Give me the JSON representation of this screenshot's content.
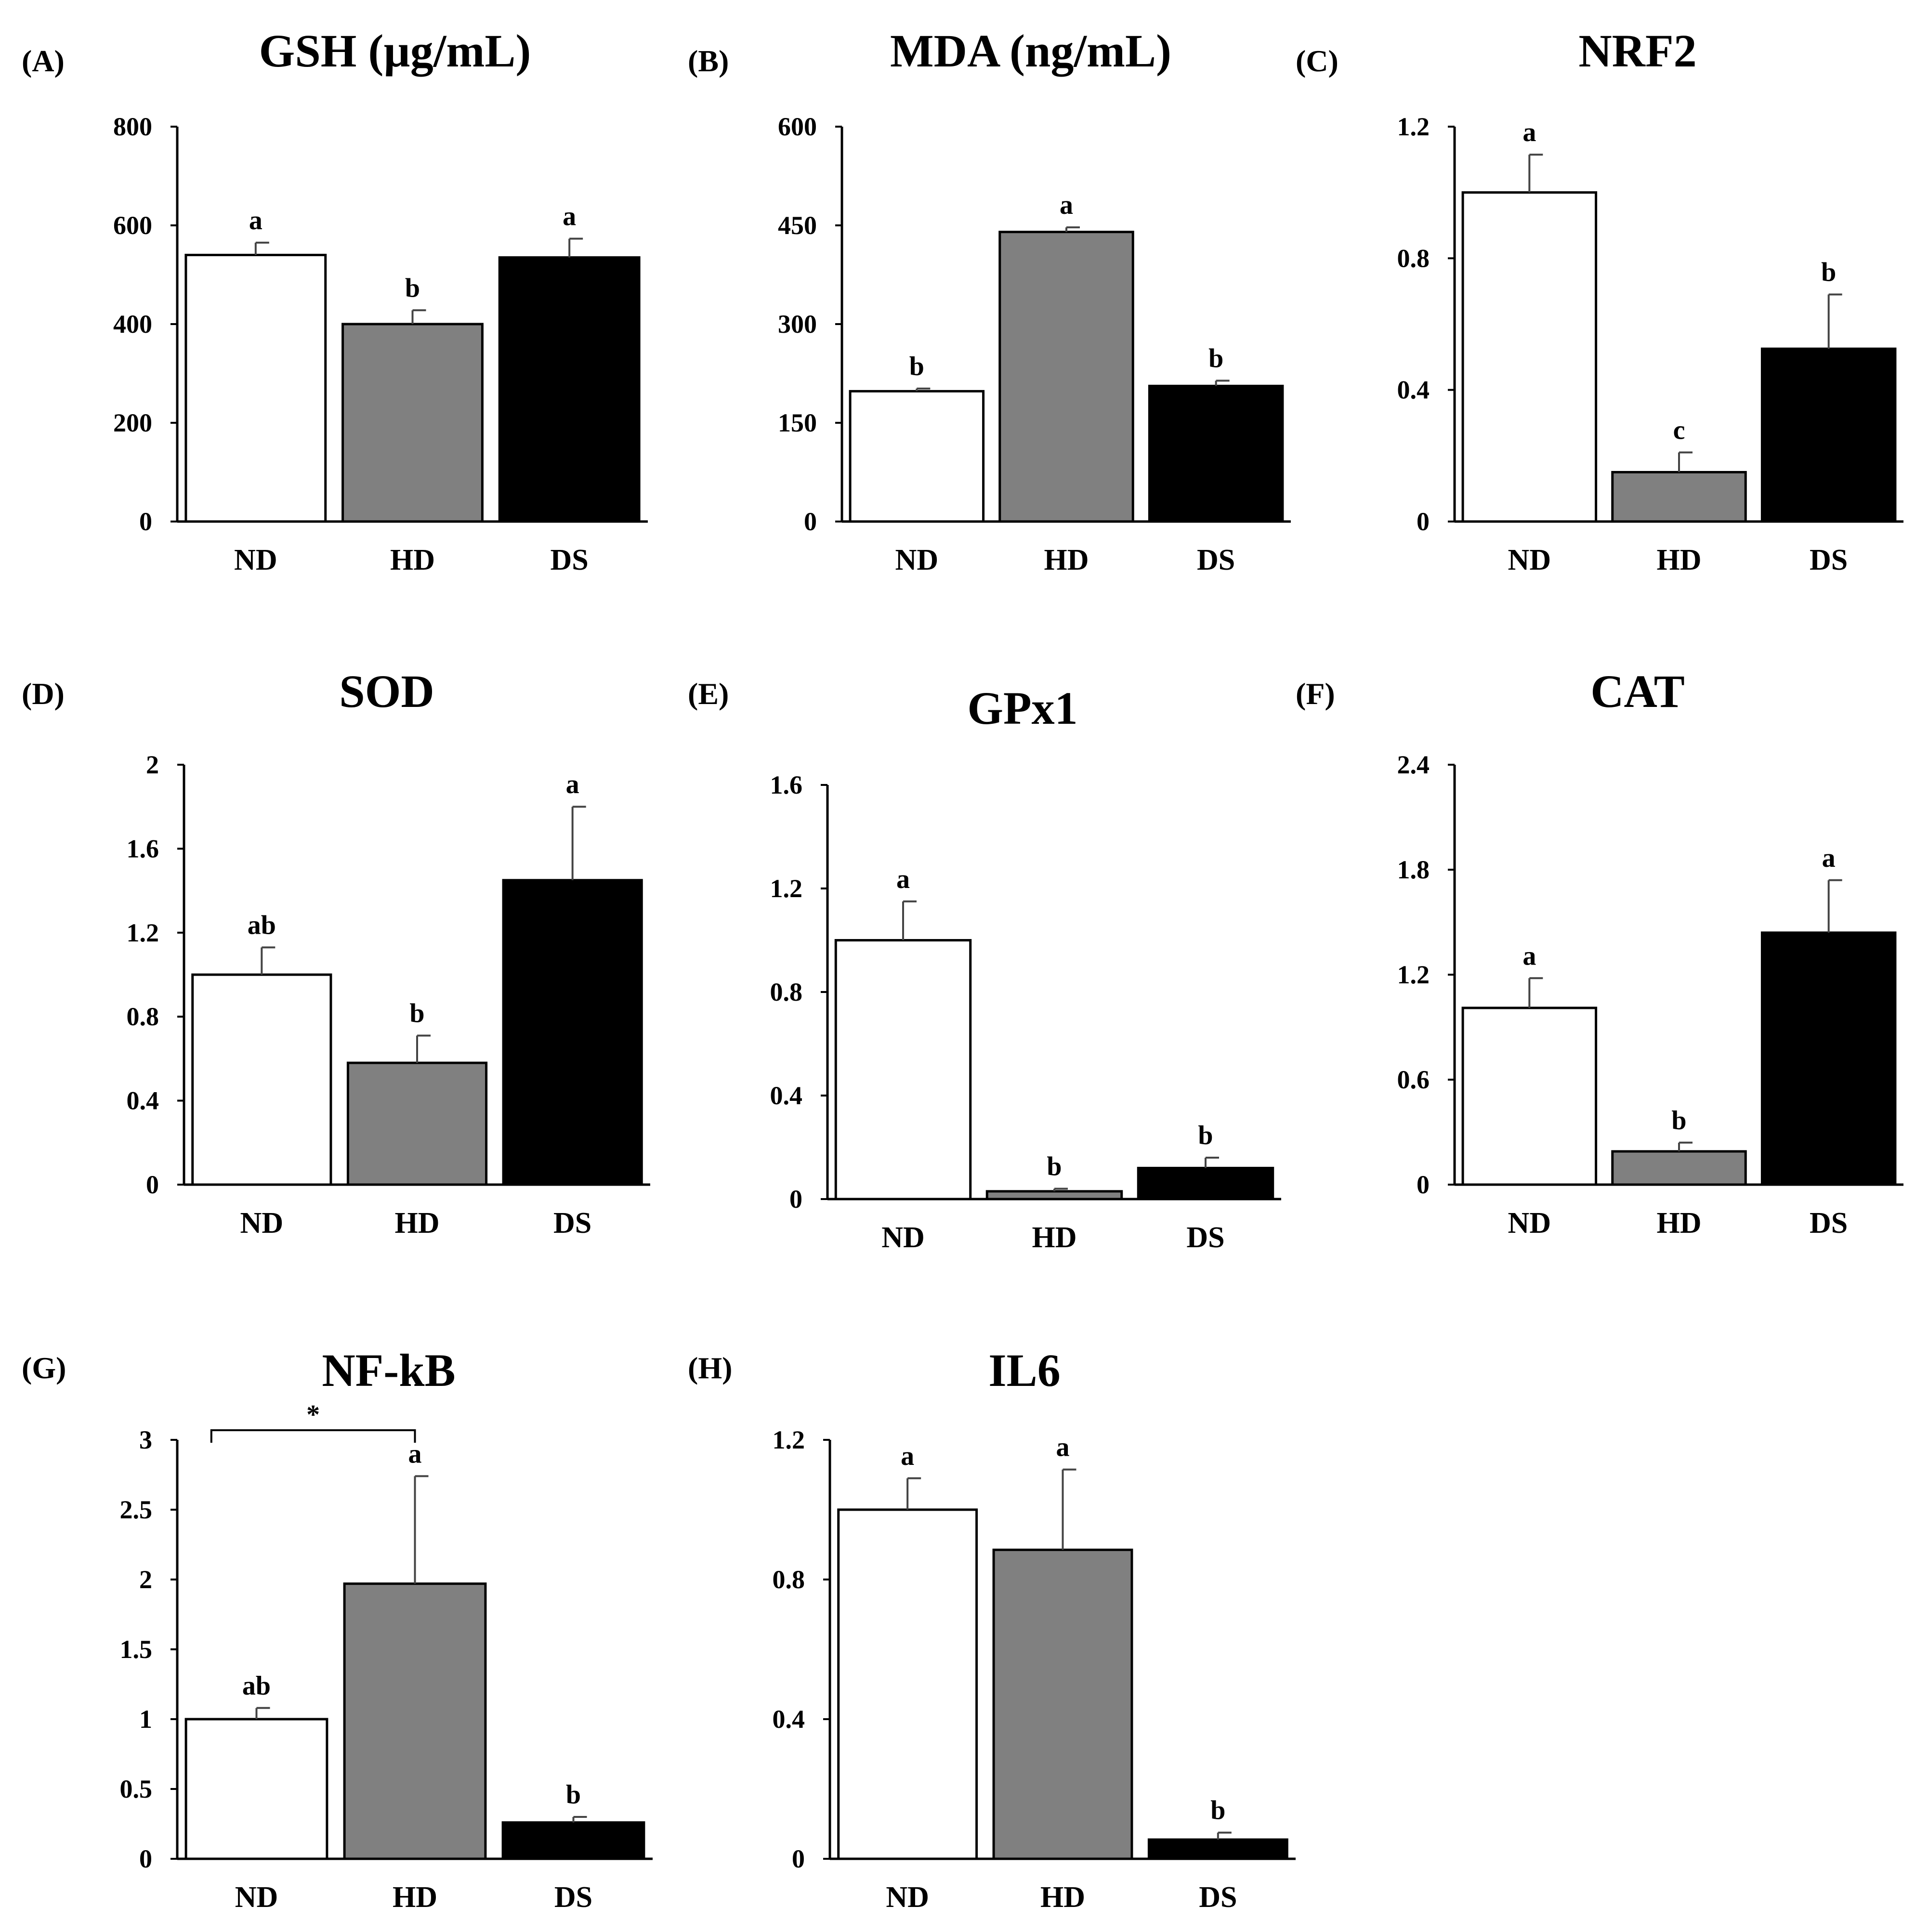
{
  "figure": {
    "groups": [
      "ND",
      "HD",
      "DS"
    ],
    "group_colors": {
      "ND": "#ffffff",
      "HD": "#808080",
      "DS": "#000000"
    }
  },
  "chart_data": [
    {
      "id": "A",
      "panel_label": "(A)",
      "type": "bar",
      "title": "GSH (µg/mL)",
      "categories": [
        "ND",
        "HD",
        "DS"
      ],
      "values": [
        540,
        400,
        535
      ],
      "errors": [
        25,
        28,
        38
      ],
      "significance": [
        "a",
        "b",
        "a"
      ],
      "ylim": [
        0,
        800
      ],
      "yticks": [
        0,
        200,
        400,
        600,
        800
      ],
      "ytick_labels": [
        "0",
        "200",
        "400",
        "600",
        "800"
      ]
    },
    {
      "id": "B",
      "panel_label": "(B)",
      "type": "bar",
      "title": "MDA (ng/mL)",
      "categories": [
        "ND",
        "HD",
        "DS"
      ],
      "values": [
        198,
        440,
        206
      ],
      "errors": [
        4,
        7,
        8
      ],
      "significance": [
        "b",
        "a",
        "b"
      ],
      "ylim": [
        0,
        600
      ],
      "yticks": [
        0,
        150,
        300,
        450,
        600
      ],
      "ytick_labels": [
        "0",
        "150",
        "300",
        "450",
        "600"
      ]
    },
    {
      "id": "C",
      "panel_label": "(C)",
      "type": "bar",
      "title": "NRF2",
      "categories": [
        "ND",
        "HD",
        "DS"
      ],
      "values": [
        1.0,
        0.15,
        0.525
      ],
      "errors": [
        0.115,
        0.06,
        0.165
      ],
      "significance": [
        "a",
        "c",
        "b"
      ],
      "ylim": [
        0,
        1.2
      ],
      "yticks": [
        0,
        0.4,
        0.8,
        1.2
      ],
      "ytick_labels": [
        "0",
        "0.4",
        "0.8",
        "1.2"
      ]
    },
    {
      "id": "D",
      "panel_label": "(D)",
      "type": "bar",
      "title": "SOD",
      "categories": [
        "ND",
        "HD",
        "DS"
      ],
      "values": [
        1.0,
        0.58,
        1.45
      ],
      "errors": [
        0.13,
        0.13,
        0.35
      ],
      "significance": [
        "ab",
        "b",
        "a"
      ],
      "ylim": [
        0,
        2
      ],
      "yticks": [
        0,
        0.4,
        0.8,
        1.2,
        1.6,
        2
      ],
      "ytick_labels": [
        "0",
        "0.4",
        "0.8",
        "1.2",
        "1.6",
        "2"
      ]
    },
    {
      "id": "E",
      "panel_label": "(E)",
      "type": "bar",
      "title": "GPx1",
      "categories": [
        "ND",
        "HD",
        "DS"
      ],
      "values": [
        1.0,
        0.03,
        0.12
      ],
      "errors": [
        0.15,
        0.01,
        0.04
      ],
      "significance": [
        "a",
        "b",
        "b"
      ],
      "ylim": [
        0,
        1.6
      ],
      "yticks": [
        0,
        0.4,
        0.8,
        1.2,
        1.6
      ],
      "ytick_labels": [
        "0",
        "0.4",
        "0.8",
        "1.2",
        "1.6"
      ]
    },
    {
      "id": "F",
      "panel_label": "(F)",
      "type": "bar",
      "title": "CAT",
      "categories": [
        "ND",
        "HD",
        "DS"
      ],
      "values": [
        1.01,
        0.19,
        1.44
      ],
      "errors": [
        0.17,
        0.05,
        0.3
      ],
      "significance": [
        "a",
        "b",
        "a"
      ],
      "ylim": [
        0,
        2.4
      ],
      "yticks": [
        0,
        0.6,
        1.2,
        1.8,
        2.4
      ],
      "ytick_labels": [
        "0",
        "0.6",
        "1.2",
        "1.8",
        "2.4"
      ]
    },
    {
      "id": "G",
      "panel_label": "(G)",
      "type": "bar",
      "title": "NF-kB",
      "categories": [
        "ND",
        "HD",
        "DS"
      ],
      "values": [
        1.0,
        1.97,
        0.26
      ],
      "errors": [
        0.08,
        0.77,
        0.04
      ],
      "significance": [
        "ab",
        "a",
        "b"
      ],
      "ylim": [
        0,
        3
      ],
      "yticks": [
        0,
        0.5,
        1,
        1.5,
        2,
        2.5,
        3
      ],
      "ytick_labels": [
        "0",
        "0.5",
        "1",
        "1.5",
        "2",
        "2.5",
        "3"
      ],
      "bracket": {
        "from": "ND",
        "to": "HD",
        "label": "*"
      }
    },
    {
      "id": "H",
      "panel_label": "(H)",
      "type": "bar",
      "title": "IL6",
      "categories": [
        "ND",
        "HD",
        "DS"
      ],
      "values": [
        1.0,
        0.885,
        0.055
      ],
      "errors": [
        0.09,
        0.23,
        0.02
      ],
      "significance": [
        "a",
        "a",
        "b"
      ],
      "ylim": [
        0,
        1.2
      ],
      "yticks": [
        0,
        0.4,
        0.8,
        1.2
      ],
      "ytick_labels": [
        "0",
        "0.4",
        "0.8",
        "1.2"
      ]
    }
  ]
}
